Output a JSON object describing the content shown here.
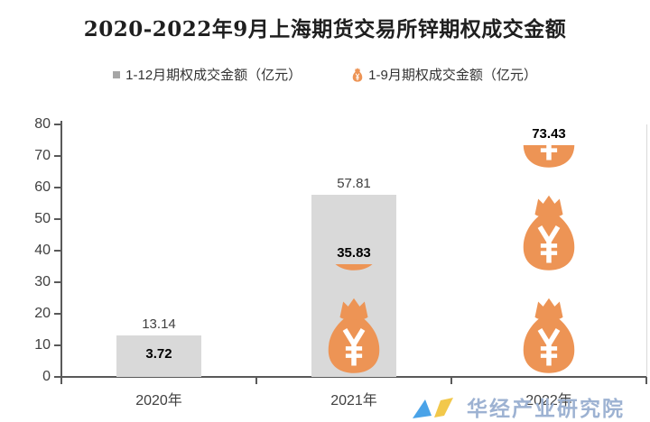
{
  "title": {
    "text": "2020-2022年9月上海期货交易所锌期权成交金额"
  },
  "legend": {
    "items": [
      {
        "label": "1-12月期权成交金额（亿元）",
        "marker": "gray-square-icon",
        "color": "#a6a6a6"
      },
      {
        "label": "1-9月期权成交金额（亿元）",
        "marker": "money-bag-icon",
        "color": "#ED9455"
      }
    ]
  },
  "chart_data": {
    "type": "bar",
    "title": "2020-2022年9月上海期货交易所锌期权成交金额",
    "categories": [
      "2020年",
      "2021年",
      "2022年"
    ],
    "series": [
      {
        "name": "1-12月期权成交金额（亿元）",
        "style": "bar",
        "color": "#d9d9d9",
        "values": [
          13.14,
          57.81,
          null
        ],
        "labels": [
          "13.14",
          "57.81",
          null
        ],
        "label_bold": false
      },
      {
        "name": "1-9月期权成交金额（亿元）",
        "style": "pictograph-money-bag",
        "color": "#ED9455",
        "values": [
          3.72,
          35.83,
          73.43
        ],
        "labels": [
          "3.72",
          "35.83",
          "73.43"
        ],
        "icons_visible": [
          false,
          true,
          true
        ],
        "label_bold": true
      }
    ],
    "xlabel": "",
    "ylabel": "",
    "ylim": [
      0,
      80
    ],
    "yticks": [
      0,
      10,
      20,
      30,
      40,
      50,
      60,
      70,
      80
    ],
    "grid": false,
    "legend_position": "top",
    "axis_color": "#595959",
    "plot_right_border_color": "#d9d9d9"
  },
  "watermark": {
    "text": "华经产业研究院",
    "text_color": "#9db2d2",
    "logo_colors": [
      "#4aa3e8",
      "#f2c84b"
    ]
  }
}
